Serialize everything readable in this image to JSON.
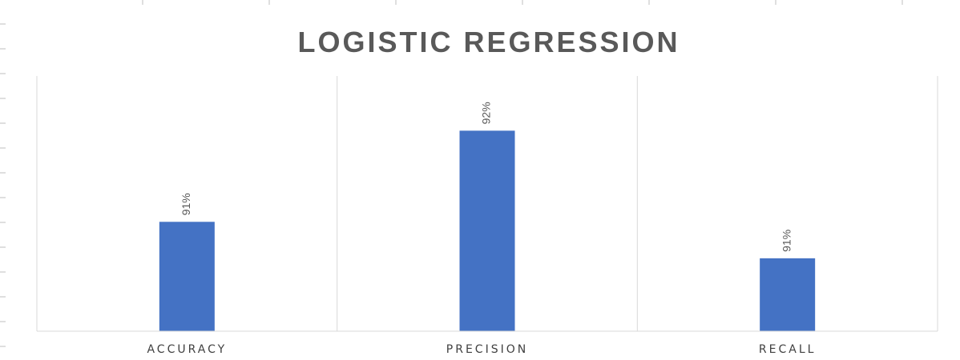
{
  "colors": {
    "bar": "#4472C4",
    "axis": "#D9D9D9",
    "title": "#595959",
    "label": "#404040",
    "sheet_ticks": "#BFBFBF"
  },
  "chart_data": {
    "type": "bar",
    "title": "LOGISTIC REGRESSION",
    "categories": [
      "ACCURACY",
      "PRECISION",
      "RECALL"
    ],
    "values": [
      91.4,
      92.4,
      91.0
    ],
    "data_labels": [
      "91%",
      "92%",
      "91%"
    ],
    "xlabel": "",
    "ylabel": "",
    "ylim": [
      90.2,
      93.0
    ],
    "grid": false,
    "legend": "none"
  }
}
